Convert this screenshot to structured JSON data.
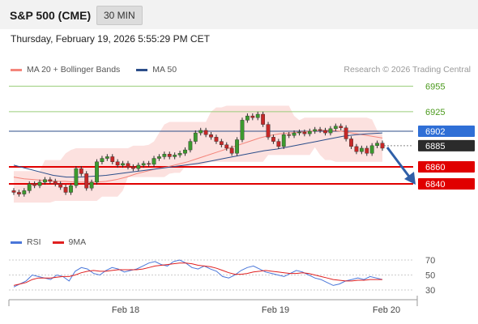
{
  "header": {
    "title": "S&P 500 (CME)",
    "timeframe": "30 MIN"
  },
  "datetime": "Thursday, February 19, 2026 5:55:29 PM CET",
  "legend": {
    "ma20": {
      "label": "MA 20 + Bollinger Bands",
      "color": "#f4857b"
    },
    "ma50": {
      "label": "MA 50",
      "color": "#2c4e8a"
    }
  },
  "credit": "Research © 2026 Trading Central",
  "price_levels": [
    {
      "value": 6955,
      "label": "6955",
      "style": "green"
    },
    {
      "value": 6925,
      "label": "6925",
      "style": "green"
    },
    {
      "value": 6902,
      "label": "6902",
      "style": "blue-tag"
    },
    {
      "value": 6885,
      "label": "6885",
      "style": "dark-tag"
    },
    {
      "value": 6860,
      "label": "6860",
      "style": "red-tag"
    },
    {
      "value": 6840,
      "label": "6840",
      "style": "red-tag"
    }
  ],
  "rsi": {
    "legend": {
      "rsi": "RSI",
      "ma": "9MA"
    },
    "levels": [
      {
        "value": 70,
        "label": "70"
      },
      {
        "value": 50,
        "label": "50"
      },
      {
        "value": 30,
        "label": "30"
      }
    ]
  },
  "xaxis": {
    "labels": [
      "Feb 18",
      "Feb 19",
      "Feb 20"
    ]
  },
  "chart_data": {
    "type": "candlestick",
    "y_range_visible": [
      6820,
      6960
    ],
    "close_series_approx": [
      6830,
      6828,
      6832,
      6840,
      6838,
      6842,
      6845,
      6843,
      6840,
      6836,
      6830,
      6838,
      6858,
      6852,
      6835,
      6842,
      6866,
      6870,
      6872,
      6866,
      6862,
      6864,
      6860,
      6858,
      6862,
      6864,
      6863,
      6870,
      6872,
      6875,
      6872,
      6874,
      6876,
      6880,
      6890,
      6900,
      6903,
      6898,
      6895,
      6890,
      6886,
      6882,
      6876,
      6892,
      6915,
      6920,
      6918,
      6922,
      6910,
      6895,
      6890,
      6884,
      6898,
      6897,
      6900,
      6901,
      6899,
      6902,
      6904,
      6903,
      6900,
      6905,
      6908,
      6906,
      6893,
      6884,
      6878,
      6882,
      6876,
      6885,
      6888,
      6882
    ],
    "ma20_approx": [
      6848,
      6846,
      6845,
      6844,
      6843,
      6843,
      6842,
      6842,
      6842,
      6843,
      6845,
      6848,
      6852,
      6855,
      6858,
      6860,
      6863,
      6866,
      6870,
      6874,
      6878,
      6882,
      6886,
      6890,
      6894,
      6897,
      6899,
      6900,
      6901,
      6902,
      6903,
      6903,
      6902,
      6900,
      6898,
      6896,
      6894
    ],
    "ma50_approx": [
      6862,
      6858,
      6854,
      6850,
      6848,
      6848,
      6849,
      6850,
      6852,
      6854,
      6856,
      6858,
      6860,
      6862,
      6864,
      6867,
      6870,
      6873,
      6876,
      6879,
      6881,
      6884,
      6887,
      6890,
      6893,
      6896,
      6898,
      6899,
      6900
    ],
    "rsi_approx": [
      34,
      38,
      42,
      50,
      48,
      46,
      44,
      50,
      48,
      42,
      55,
      60,
      58,
      52,
      50,
      56,
      60,
      58,
      54,
      56,
      58,
      62,
      66,
      68,
      64,
      62,
      68,
      70,
      66,
      60,
      58,
      62,
      58,
      55,
      48,
      46,
      50,
      56,
      60,
      62,
      58,
      54,
      52,
      50,
      48,
      52,
      56,
      54,
      50,
      46,
      44,
      40,
      36,
      38,
      42,
      44,
      46,
      44,
      48,
      46,
      44
    ],
    "rsi_ma_approx": [
      36,
      38,
      40,
      44,
      46,
      46,
      46,
      47,
      48,
      48,
      50,
      53,
      55,
      56,
      55,
      55,
      56,
      57,
      57,
      57,
      57,
      58,
      60,
      62,
      63,
      64,
      65,
      66,
      66,
      65,
      63,
      62,
      61,
      59,
      56,
      53,
      51,
      51,
      52,
      54,
      55,
      56,
      55,
      54,
      53,
      52,
      52,
      53,
      52,
      50,
      48,
      46,
      44,
      43,
      42,
      42,
      43,
      43,
      44,
      44,
      44
    ]
  }
}
